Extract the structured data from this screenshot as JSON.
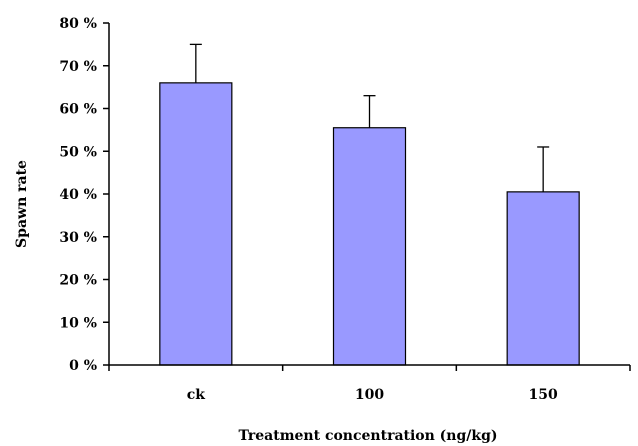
{
  "chart_data": {
    "type": "bar",
    "categories": [
      "ck",
      "100",
      "150"
    ],
    "series": [
      {
        "values": [
          66,
          55.5,
          40.5
        ],
        "errors": [
          9,
          7.5,
          10.5
        ],
        "color": "#9999ff"
      }
    ],
    "xlabel": "Treatment concentration (ng/kg)",
    "ylabel": "Spawn rate",
    "ylim": [
      0,
      80
    ],
    "yticks": [
      0,
      10,
      20,
      30,
      40,
      50,
      60,
      70,
      80
    ],
    "ytick_labels": [
      "0 %",
      "10 %",
      "20 %",
      "30 %",
      "40 %",
      "50 %",
      "60 %",
      "70 %",
      "80 %"
    ],
    "grid": false,
    "legend": "none"
  }
}
